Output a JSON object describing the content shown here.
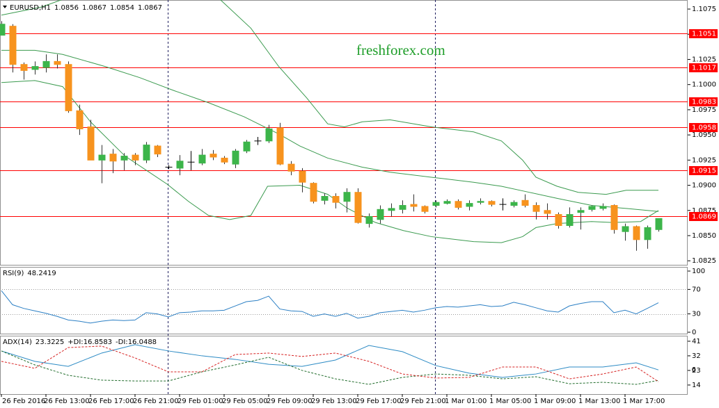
{
  "chart_data": [
    {
      "type": "candlestick",
      "symbol": "EURUSD,H1",
      "watermark": "freshforex.com",
      "open": [
        1.1049,
        1.1058,
        1.102,
        1.1015,
        1.1017,
        1.1023,
        1.102,
        1.0974,
        1.0958,
        1.0925,
        1.0931,
        1.0925,
        1.093,
        1.0925,
        1.0939,
        1.0918,
        1.0917,
        1.0923,
        1.0922,
        1.0931,
        1.0927,
        1.0921,
        1.0934,
        1.0944,
        1.0944,
        1.0957,
        1.0921,
        1.0914,
        1.0902,
        1.0885,
        1.0889,
        1.0884,
        1.0893,
        1.0862,
        1.0866,
        1.0875,
        1.0876,
        1.0881,
        1.0879,
        1.088,
        1.0882,
        1.0884,
        1.0879,
        1.0883,
        1.0884,
        1.0881,
        1.088,
        1.0885,
        1.088,
        1.0875,
        1.0871,
        1.086,
        1.0873,
        1.0876,
        1.0877,
        1.088,
        1.0854,
        1.0859,
        1.0846,
        1.0856
      ],
      "high": [
        1.1063,
        1.106,
        1.1022,
        1.1023,
        1.103,
        1.103,
        1.1023,
        1.098,
        1.0965,
        1.094,
        1.0936,
        1.0932,
        1.0932,
        1.0943,
        1.094,
        1.092,
        1.093,
        1.0934,
        1.0936,
        1.0935,
        1.0929,
        1.0936,
        1.0945,
        1.0948,
        1.096,
        1.0962,
        1.0924,
        1.0917,
        1.0903,
        1.0892,
        1.0892,
        1.0897,
        1.0897,
        1.0872,
        1.088,
        1.0882,
        1.0885,
        1.0891,
        1.088,
        1.0885,
        1.0886,
        1.0886,
        1.0885,
        1.0887,
        1.0885,
        1.0887,
        1.0885,
        1.0891,
        1.0883,
        1.0882,
        1.0873,
        1.0878,
        1.0878,
        1.088,
        1.0882,
        1.0881,
        1.0862,
        1.086,
        1.086,
        1.0867
      ],
      "low": [
        1.1049,
        1.1012,
        1.1005,
        1.101,
        1.1012,
        1.1016,
        1.0972,
        1.095,
        1.0925,
        1.0902,
        1.0912,
        1.0915,
        1.092,
        1.0922,
        1.0928,
        1.0916,
        1.091,
        1.0915,
        1.092,
        1.0925,
        1.0921,
        1.0917,
        1.0932,
        1.094,
        1.0942,
        1.092,
        1.091,
        1.0893,
        1.0882,
        1.0881,
        1.0877,
        1.0873,
        1.0862,
        1.0858,
        1.0862,
        1.0869,
        1.0872,
        1.0874,
        1.0872,
        1.0878,
        1.0881,
        1.0876,
        1.0875,
        1.0881,
        1.0879,
        1.0875,
        1.0878,
        1.0878,
        1.0866,
        1.0866,
        1.0857,
        1.0858,
        1.0856,
        1.0874,
        1.0875,
        1.0852,
        1.0845,
        1.0835,
        1.0837,
        1.0854
      ],
      "close": [
        1.106,
        1.102,
        1.1014,
        1.1018,
        1.1023,
        1.102,
        1.0974,
        1.0956,
        1.0925,
        1.093,
        1.0924,
        1.0929,
        1.0925,
        1.094,
        1.0931,
        1.0918,
        1.0924,
        1.0923,
        1.093,
        1.0928,
        1.0923,
        1.0934,
        1.0943,
        1.0944,
        1.0956,
        1.0921,
        1.0914,
        1.0903,
        1.0884,
        1.0889,
        1.0883,
        1.0893,
        1.0863,
        1.0869,
        1.0876,
        1.0877,
        1.088,
        1.0879,
        1.0874,
        1.0883,
        1.0884,
        1.0878,
        1.0882,
        1.0884,
        1.0881,
        1.0881,
        1.0883,
        1.088,
        1.0874,
        1.0872,
        1.086,
        1.0871,
        1.0875,
        1.0879,
        1.0879,
        1.0856,
        1.0859,
        1.0846,
        1.0858,
        1.0867
      ],
      "up_color": "#3cb54a",
      "down_color": "#f7931e",
      "doji_color": "#000000",
      "bands": [
        {
          "color": "#3a9a4e",
          "x": [
            0,
            3.6,
            6.1,
            19.3,
            22.4,
            24.9,
            27.4,
            29.3,
            30.8,
            32.4,
            34.9,
            38.6,
            42.4,
            44.9,
            46.8,
            48,
            49.9,
            51.8,
            54.3,
            56.1,
            59
          ],
          "values": [
            1.1069,
            1.1077,
            1.1087,
            1.1088,
            1.1056,
            1.1018,
            1.0987,
            1.0961,
            1.0958,
            1.0963,
            1.0965,
            1.0958,
            1.0953,
            1.0944,
            1.0925,
            1.0908,
            1.0899,
            1.0893,
            1.0891,
            1.0895,
            1.0895
          ]
        },
        {
          "color": "#3a9a4e",
          "x": [
            0,
            3,
            5.5,
            9.3,
            12.4,
            15.5,
            18.6,
            21.8,
            24.9,
            26.8,
            29.3,
            32.4,
            34.9,
            38.6,
            42.4,
            44.9,
            47.4,
            49.9,
            53,
            56.1,
            59
          ],
          "values": [
            1.1034,
            1.1034,
            1.103,
            1.1018,
            1.1007,
            1.0994,
            1.0982,
            1.0968,
            1.0951,
            1.0939,
            1.0927,
            1.0918,
            1.0913,
            1.0908,
            1.0903,
            1.0899,
            1.0893,
            1.0887,
            1.088,
            1.0877,
            1.0874
          ]
        },
        {
          "color": "#3a9a4e",
          "x": [
            0,
            3,
            5.5,
            8,
            11.1,
            14.9,
            16.8,
            18.6,
            20.5,
            22.4,
            23.9,
            26.8,
            29.3,
            31.1,
            33.6,
            36.1,
            38.6,
            42.4,
            44.9,
            46.8,
            48,
            49.9,
            53,
            54.9,
            57.4,
            59
          ],
          "values": [
            1.1002,
            1.1004,
            1.0998,
            1.0963,
            1.0929,
            1.0901,
            1.0884,
            1.087,
            1.0866,
            1.087,
            1.0899,
            1.09,
            1.0891,
            1.0877,
            1.0863,
            1.0855,
            1.0849,
            1.0844,
            1.0843,
            1.0849,
            1.0858,
            1.0862,
            1.0864,
            1.0863,
            1.0864,
            1.0875
          ]
        }
      ],
      "levels": [
        1.1051,
        1.1017,
        1.0983,
        1.0958,
        1.0915,
        1.0869
      ],
      "level_color": "#ff0000",
      "ylim": [
        1.0821,
        1.1084
      ],
      "yticks": [
        1.1075,
        {
          "value": 1.105,
          "label": "1.1050"
        },
        1.1025,
        {
          "value": 1.1,
          "label": "1.1000"
        },
        1.0975,
        {
          "value": 1.095,
          "label": "1.0950"
        },
        1.0925,
        {
          "value": 1.09,
          "label": "1.0900"
        },
        1.0875,
        {
          "value": 1.085,
          "label": "1.0850"
        },
        1.0825
      ],
      "xticks": [
        {
          "value": 0,
          "label": "26 Feb 2016"
        },
        {
          "value": 4,
          "label": "26 Feb 13:00"
        },
        {
          "value": 8,
          "label": "26 Feb 17:00"
        },
        {
          "value": 12,
          "label": "26 Feb 21:00"
        },
        {
          "value": 16,
          "label": "29 Feb 01:00"
        },
        {
          "value": 20,
          "label": "29 Feb 05:00"
        },
        {
          "value": 24,
          "label": "29 Feb 09:00"
        },
        {
          "value": 28,
          "label": "29 Feb 13:00"
        },
        {
          "value": 32,
          "label": "29 Feb 17:00"
        },
        {
          "value": 36,
          "label": "29 Feb 21:00"
        },
        {
          "value": 40,
          "label": "1 Mar 01:00"
        },
        {
          "value": 44,
          "label": "1 Mar 05:00"
        },
        {
          "value": 48,
          "label": "1 Mar 09:00"
        },
        {
          "value": 52,
          "label": "1 Mar 13:00"
        },
        {
          "value": 56,
          "label": "1 Mar 17:00"
        }
      ]
    },
    {
      "type": "line",
      "series": [
        {
          "name": "RSI(9)",
          "color": "#2b7fc4",
          "values": [
            68,
            45,
            39,
            35,
            31,
            26,
            20,
            18,
            15,
            18,
            20,
            19,
            20,
            32,
            30,
            25,
            32,
            33,
            35,
            35,
            36,
            43,
            50,
            52,
            59,
            38,
            35,
            34,
            26,
            30,
            26,
            31,
            23,
            26,
            32,
            34,
            36,
            33,
            36,
            40,
            42,
            41,
            43,
            45,
            42,
            43,
            49,
            45,
            40,
            35,
            33,
            43,
            47,
            50,
            50,
            32,
            36,
            30,
            39,
            48.2419
          ]
        }
      ],
      "ylim": [
        -3.4,
        106.8
      ],
      "yticks": [
        100,
        70,
        30,
        0
      ],
      "levels": [
        70,
        30
      ]
    },
    {
      "type": "line",
      "side_label": "6",
      "series": [
        {
          "name": "ADX(14)",
          "color": "#2b8ac4",
          "x": [
            0,
            3,
            6,
            9,
            12,
            15,
            18,
            21,
            24,
            27,
            30,
            33,
            36,
            39,
            42,
            45,
            48,
            51,
            54,
            57,
            59
          ],
          "values": [
            35,
            28.6,
            25.5,
            33.7,
            38.9,
            35,
            32,
            29.8,
            26.8,
            25.5,
            29.4,
            38.4,
            34.6,
            26,
            21.3,
            18.7,
            20.8,
            25.1,
            25.1,
            27.7,
            23.3225
          ]
        },
        {
          "name": "+DI:",
          "color": "#1f6b2a",
          "dashed": true,
          "x": [
            0,
            3,
            6,
            9,
            12,
            15,
            18,
            21,
            24,
            27,
            30,
            33,
            36,
            39,
            42,
            45,
            48,
            51,
            54,
            57,
            59
          ],
          "values": [
            35,
            26.4,
            20,
            17,
            16.5,
            16.5,
            22.1,
            26.4,
            31.1,
            23,
            17.8,
            14.4,
            18.7,
            20.8,
            20,
            17.8,
            19.1,
            14.8,
            15.7,
            14.4,
            16.8583
          ]
        },
        {
          "name": "-DI:",
          "color": "#d62020",
          "dashed": true,
          "x": [
            0,
            3,
            6,
            9,
            12,
            15,
            18,
            21,
            24,
            27,
            30,
            33,
            36,
            39,
            42,
            45,
            48,
            51,
            54,
            57,
            59
          ],
          "values": [
            28.6,
            24.3,
            37.1,
            38,
            30.7,
            22.1,
            22.1,
            32.8,
            33.7,
            31.6,
            33.7,
            28.6,
            20.8,
            18.3,
            18.7,
            25.1,
            25.1,
            17.8,
            20.8,
            25.1,
            16.0488
          ]
        }
      ],
      "ylim": [
        8.4,
        44.4
      ],
      "yticks": [
        41,
        32,
        23,
        14
      ]
    }
  ]
}
